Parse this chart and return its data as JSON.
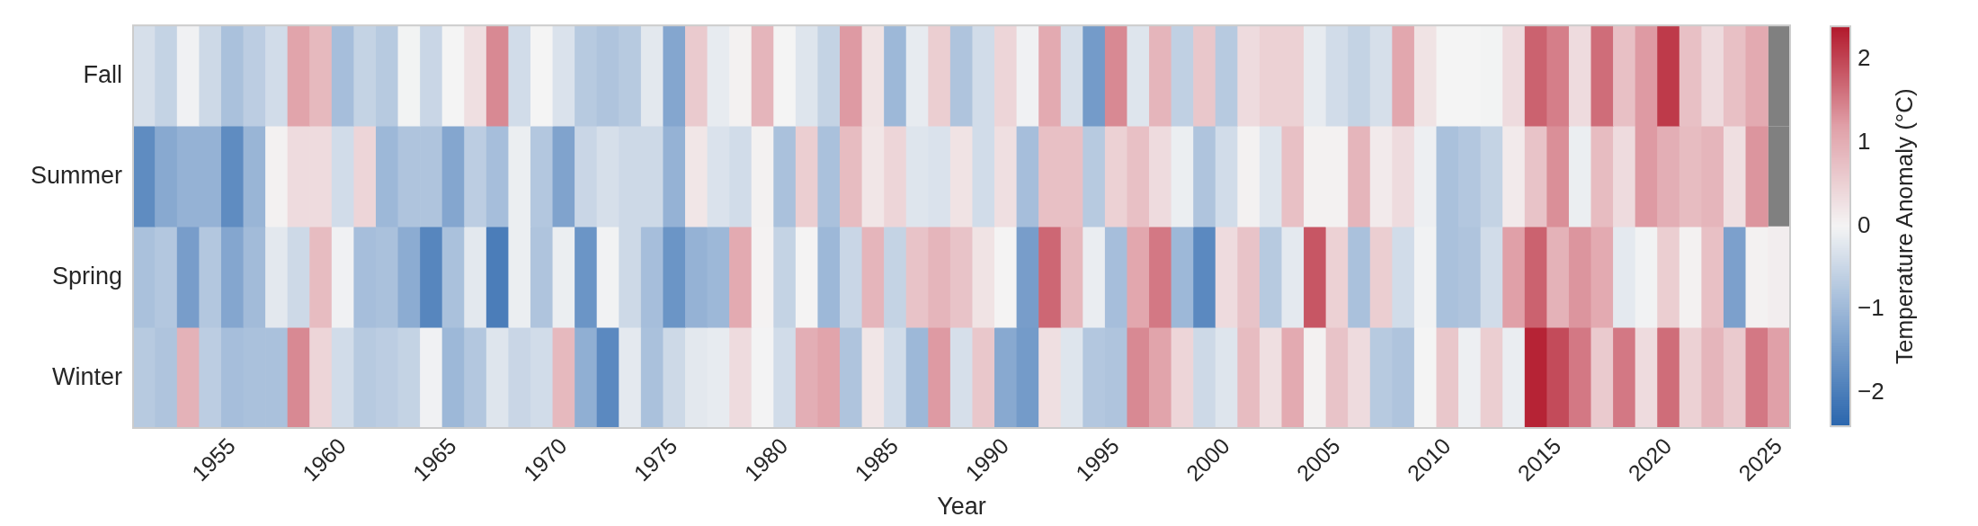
{
  "chart_data": {
    "type": "heatmap",
    "xlabel": "Year",
    "clabel": "Temperature Anomaly (°C)",
    "categories": [
      null,
      null,
      null,
      null,
      "1955",
      null,
      null,
      null,
      null,
      "1960",
      null,
      null,
      null,
      null,
      "1965",
      null,
      null,
      null,
      null,
      "1970",
      null,
      null,
      null,
      null,
      "1975",
      null,
      null,
      null,
      null,
      "1980",
      null,
      null,
      null,
      null,
      "1985",
      null,
      null,
      null,
      null,
      "1990",
      null,
      null,
      null,
      null,
      "1995",
      null,
      null,
      null,
      null,
      "2000",
      null,
      null,
      null,
      null,
      "2005",
      null,
      null,
      null,
      null,
      "2010",
      null,
      null,
      null,
      null,
      "2015",
      null,
      null,
      null,
      null,
      "2020",
      null,
      null,
      null,
      null,
      "2025"
    ],
    "y_categories": [
      "Fall",
      "Summer",
      "Spring",
      "Winter"
    ],
    "cells": [
      [
        -0.35,
        -0.55,
        -0.05,
        -0.45,
        -0.85,
        -0.65,
        -0.4,
        1.15,
        0.85,
        -0.9,
        -0.55,
        -0.7,
        -0.02,
        -0.5,
        0.0,
        0.3,
        1.4,
        -0.4,
        0.0,
        -0.3,
        -0.7,
        -0.8,
        -0.7,
        -0.2,
        -1.3,
        0.6,
        -0.15,
        0.05,
        0.9,
        0.0,
        -0.25,
        -0.55,
        1.25,
        0.25,
        -1.0,
        -0.15,
        0.55,
        -0.8,
        -0.4,
        0.45,
        -0.05,
        1.05,
        -0.35,
        -1.5,
        1.4,
        -0.25,
        0.9,
        -0.6,
        0.65,
        -0.7,
        0.35,
        0.5,
        0.5,
        -0.15,
        -0.4,
        -0.55,
        -0.35,
        1.1,
        0.25,
        0.0,
        0.0,
        -0.02,
        0.35,
        1.75,
        1.5,
        0.35,
        1.65,
        0.75,
        1.25,
        2.1,
        0.75,
        0.35,
        0.75,
        1.05,
        null
      ],
      [
        -1.75,
        -1.25,
        -1.1,
        -1.1,
        -1.75,
        -1.05,
        0.05,
        0.35,
        0.35,
        -0.4,
        0.45,
        -1.0,
        -0.8,
        -0.8,
        -1.3,
        -0.65,
        -0.9,
        -0.1,
        -0.75,
        -1.35,
        -0.5,
        -0.35,
        -0.45,
        -0.45,
        -1.1,
        0.2,
        -0.3,
        -0.4,
        0.05,
        -0.85,
        0.55,
        -0.85,
        0.8,
        0.2,
        0.45,
        -0.25,
        -0.3,
        0.25,
        -0.4,
        0.3,
        -0.9,
        0.75,
        0.75,
        -0.7,
        0.5,
        0.75,
        0.35,
        -0.1,
        -0.8,
        -0.4,
        0.05,
        -0.25,
        0.75,
        0.05,
        0.05,
        0.9,
        0.15,
        0.35,
        -0.08,
        -0.85,
        -0.75,
        -0.55,
        0.15,
        0.7,
        1.35,
        -0.1,
        0.8,
        0.35,
        1.25,
        1.0,
        0.8,
        0.9,
        0.3,
        1.3,
        null
      ],
      [
        -0.85,
        -0.75,
        -1.45,
        -0.75,
        -1.3,
        -0.95,
        -0.2,
        -0.45,
        0.8,
        -0.05,
        -0.9,
        -0.85,
        -1.2,
        -1.85,
        -0.85,
        -0.2,
        -2.0,
        -0.1,
        -0.8,
        -0.1,
        -1.6,
        -0.03,
        -0.45,
        -0.9,
        -1.6,
        -1.1,
        -1.0,
        1.05,
        0.03,
        -0.55,
        0.02,
        -1.0,
        -0.5,
        0.9,
        -0.55,
        0.7,
        0.9,
        0.7,
        0.25,
        0.02,
        -1.45,
        1.7,
        0.85,
        -0.12,
        -0.9,
        1.1,
        1.55,
        -1.0,
        -1.8,
        0.35,
        0.7,
        -0.7,
        -0.18,
        1.85,
        0.5,
        -0.85,
        0.55,
        -0.4,
        -0.03,
        -0.85,
        -0.8,
        -0.4,
        1.2,
        1.75,
        0.95,
        1.3,
        1.05,
        -0.18,
        -0.03,
        0.55,
        0.05,
        0.75,
        -1.4,
        0.05,
        0.1
      ],
      [
        -0.7,
        -0.8,
        0.95,
        -0.65,
        -0.9,
        -0.85,
        -0.85,
        1.4,
        0.45,
        -0.4,
        -0.7,
        -0.65,
        -0.55,
        -0.05,
        -1.0,
        -0.75,
        -0.25,
        -0.5,
        -0.4,
        0.85,
        -1.15,
        -1.8,
        -0.18,
        -0.85,
        -0.45,
        -0.2,
        -0.15,
        0.35,
        -0.01,
        -0.4,
        1.0,
        1.15,
        -0.8,
        0.2,
        -0.4,
        -1.0,
        1.25,
        -0.35,
        0.65,
        -1.25,
        -1.5,
        0.3,
        -0.25,
        -0.75,
        -0.8,
        1.4,
        1.15,
        0.45,
        -0.45,
        -0.25,
        0.8,
        0.3,
        1.05,
        0.05,
        0.7,
        0.35,
        -0.7,
        -0.8,
        0.0,
        0.65,
        -0.08,
        0.55,
        -0.12,
        2.3,
        1.95,
        1.55,
        0.6,
        1.55,
        0.35,
        1.65,
        0.5,
        0.9,
        0.6,
        1.55,
        1.2
      ]
    ],
    "clim": [
      -2.4,
      2.4
    ],
    "cticks": [
      -2,
      -1,
      0,
      1,
      2
    ]
  }
}
